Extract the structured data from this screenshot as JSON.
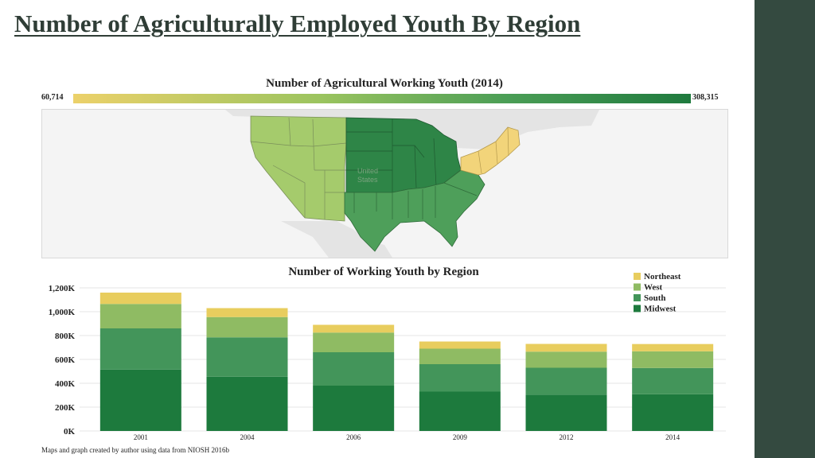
{
  "slide": {
    "title": "Number of Agriculturally Employed Youth By Region",
    "footnote": "Maps and graph created by author using data from NIOSH 2016b"
  },
  "map": {
    "title": "Number of Agricultural Working Youth (2014)",
    "legend_min": "60,714",
    "legend_max": "308,315",
    "country_label_1": "United",
    "country_label_2": "States",
    "region_colors": {
      "West": "#a5cb6c",
      "Midwest": "#2e8547",
      "South": "#4e9f5a",
      "Northeast": "#f2d47a"
    }
  },
  "chart_data": {
    "type": "bar",
    "stacked": true,
    "title": "Number of Working Youth by Region",
    "xlabel": "",
    "ylabel": "",
    "categories": [
      "2001",
      "2004",
      "2006",
      "2009",
      "2012",
      "2014"
    ],
    "yticks": [
      "0K",
      "200K",
      "400K",
      "600K",
      "800K",
      "1,000K",
      "1,200K"
    ],
    "ylim": [
      0,
      1200
    ],
    "grid": true,
    "legend_position": "top-right",
    "series": [
      {
        "name": "Midwest",
        "color": "#1d7a3d",
        "values": [
          515,
          455,
          380,
          330,
          305,
          308
        ]
      },
      {
        "name": "South",
        "color": "#43955a",
        "values": [
          345,
          330,
          280,
          230,
          225,
          220
        ]
      },
      {
        "name": "West",
        "color": "#8fbb63",
        "values": [
          205,
          170,
          165,
          130,
          135,
          140
        ]
      },
      {
        "name": "Northeast",
        "color": "#e8cd5e",
        "values": [
          95,
          75,
          65,
          60,
          65,
          61
        ]
      }
    ],
    "legend_order": [
      "Northeast",
      "West",
      "South",
      "Midwest"
    ]
  }
}
